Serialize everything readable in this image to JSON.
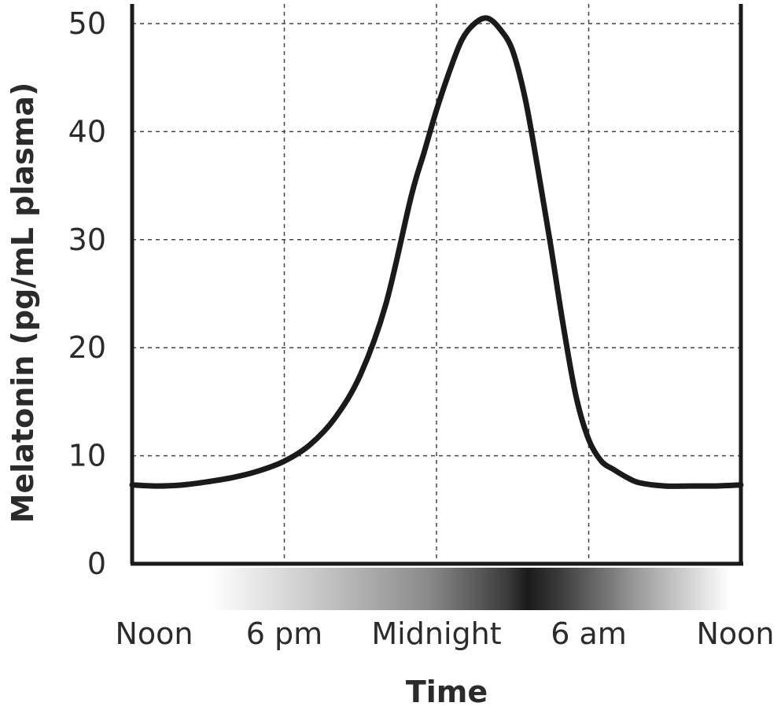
{
  "chart_data": {
    "type": "line",
    "title": "",
    "xlabel": "Time",
    "ylabel": "Melatonin (pg/mL plasma)",
    "ylim": [
      0,
      50
    ],
    "yticks": [
      0,
      10,
      20,
      30,
      40,
      50
    ],
    "xlim": [
      0,
      24
    ],
    "xticks": [
      {
        "value": 0,
        "label": "Noon"
      },
      {
        "value": 6,
        "label": "6 pm"
      },
      {
        "value": 12,
        "label": "Midnight"
      },
      {
        "value": 18,
        "label": "6 am"
      },
      {
        "value": 24,
        "label": "Noon"
      }
    ],
    "grid": true,
    "x_unit": "hours after noon",
    "series": [
      {
        "color": "#1a1a1a",
        "x": [
          0,
          1,
          2,
          3,
          4,
          5,
          6,
          7,
          8,
          9,
          10,
          11,
          11.5,
          12,
          12.5,
          13,
          13.5,
          14,
          14.5,
          15,
          15.5,
          16,
          16.5,
          17,
          17.5,
          18,
          18.5,
          19,
          19.5,
          20,
          21,
          22,
          23,
          24
        ],
        "y": [
          7.3,
          7.2,
          7.3,
          7.6,
          8.0,
          8.6,
          9.5,
          11.0,
          13.5,
          17.5,
          24.0,
          34.0,
          38.0,
          42.0,
          45.5,
          48.5,
          50.0,
          50.5,
          49.5,
          47.5,
          43.0,
          36.5,
          29.5,
          22.0,
          15.5,
          11.5,
          9.5,
          8.7,
          8.0,
          7.5,
          7.2,
          7.2,
          7.2,
          7.3
        ]
      }
    ]
  },
  "colors": {
    "axis": "#1a1a1a",
    "grid": "#444444",
    "night_band_dark": "#1a1a1a",
    "night_band_light": "#ffffff"
  }
}
